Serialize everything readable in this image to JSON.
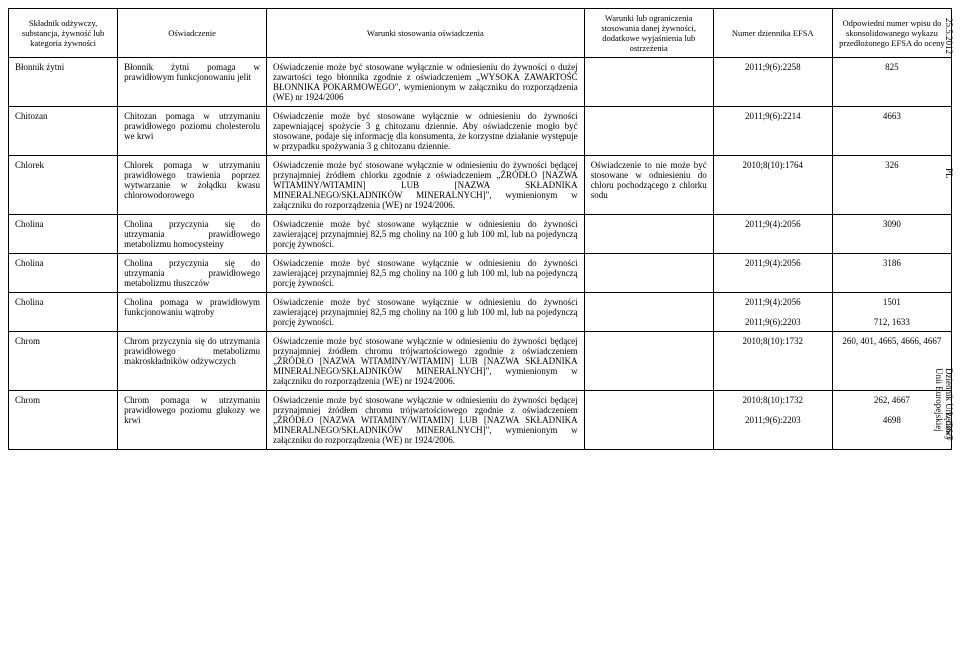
{
  "margins": {
    "top_date": "25.5.2012",
    "pl": "PL",
    "journal": "Dziennik Urzędowy Unii Europejskiej",
    "page": "L 136/7"
  },
  "headers": {
    "c1": "Składnik odżywczy, substancja, żywność lub kategoria żywności",
    "c2": "Oświadczenie",
    "c3": "Warunki stosowania oświadczenia",
    "c4": "Warunki lub ograniczenia stosowania danej żywności, dodatkowe wyjaśnienia lub ostrzeżenia",
    "c5": "Numer dziennika EFSA",
    "c6": "Odpowiedni numer wpisu do skonsolidowanego wykazu przedłożonego EFSA do oceny"
  },
  "rows": [
    {
      "c1": "Błonnik żytni",
      "c2": "Błonnik żytni pomaga w prawidłowym funkcjonowaniu jelit",
      "c3": "Oświadczenie może być stosowane wyłącznie w odniesieniu do żywności o dużej zawartości tego błonnika zgodnie z oświadczeniem „WYSOKA ZAWARTOŚĆ BŁONNIKA POKARMOWEGO\", wymienionym w załączniku do rozporządzenia (WE) nr 1924/2006",
      "c4": "",
      "c5": "2011;9(6):2258",
      "c6": "825"
    },
    {
      "c1": "Chitozan",
      "c2": "Chitozan pomaga w utrzymaniu prawidłowego poziomu cholesterolu we krwi",
      "c3": "Oświadczenie może być stosowane wyłącznie w odniesieniu do żywności zapewniającej spożycie 3 g chitozanu dziennie. Aby oświadczenie mogło być stosowane, podaje się informację dla konsumenta, że korzystne działanie występuje w przypadku spożywania 3 g chitozanu dziennie.",
      "c4": "",
      "c5": "2011;9(6):2214",
      "c6": "4663"
    },
    {
      "c1": "Chlorek",
      "c2": "Chlorek pomaga w utrzymaniu prawidłowego trawienia poprzez wytwarzanie w żołądku kwasu chlorowodorowego",
      "c3": "Oświadczenie może być stosowane wyłącznie w odniesieniu do żywności będącej przynajmniej źródłem chlorku zgodnie z oświadczeniem „ŹRÓDŁO [NAZWA WITAMINY/WITAMIN] LUB [NAZWA SKŁADNIKA MINERALNEGO/SKŁADNIKÓW MINERALNYCH]\", wymienionym w załączniku do rozporządzenia (WE) nr 1924/2006.",
      "c4": "Oświadczenie to nie może być stosowane w odniesieniu do chloru pochodzącego z chlorku sodu",
      "c5": "2010;8(10):1764",
      "c6": "326"
    },
    {
      "c1": "Cholina",
      "c2": "Cholina przyczynia się do utrzymania prawidłowego metabolizmu homocysteiny",
      "c3": "Oświadczenie może być stosowane wyłącznie w odniesieniu do żywności zawierającej przynajmniej 82,5 mg choliny na 100 g lub 100 ml, lub na pojedynczą porcję żywności.",
      "c4": "",
      "c5": "2011;9(4):2056",
      "c6": "3090"
    },
    {
      "c1": "Cholina",
      "c2": "Cholina przyczynia się do utrzymania prawidłowego metabolizmu tłuszczów",
      "c3": "Oświadczenie może być stosowane wyłącznie w odniesieniu do żywności zawierającej przynajmniej 82,5 mg choliny na 100 g lub 100 ml, lub na pojedynczą porcję żywności.",
      "c4": "",
      "c5": "2011;9(4):2056",
      "c6": "3186"
    },
    {
      "c1": "Cholina",
      "c2": "Cholina pomaga w prawidłowym funkcjonowaniu wątroby",
      "c3": "Oświadczenie może być stosowane wyłącznie w odniesieniu do żywności zawierającej przynajmniej 82,5 mg choliny na 100 g lub 100 ml, lub na pojedynczą porcję żywności.",
      "c4": "",
      "c5": "2011;9(4):2056\n2011;9(6):2203",
      "c6": "1501\n712, 1633"
    },
    {
      "c1": "Chrom",
      "c2": "Chrom przyczynia się do utrzymania prawidłowego metabolizmu makroskładników odżywczych",
      "c3": "Oświadczenie może być stosowane wyłącznie w odniesieniu do żywności będącej przynajmniej źródłem chromu trójwartościowego zgodnie z oświadczeniem „ŹRÓDŁO [NAZWA WITAMINY/WITAMIN] LUB [NAZWA SKŁADNIKA MINERALNEGO/SKŁADNIKÓW MINERALNYCH]\", wymienionym w załączniku do rozporządzenia (WE) nr 1924/2006.",
      "c4": "",
      "c5": "2010;8(10):1732",
      "c6": "260, 401, 4665, 4666, 4667"
    },
    {
      "c1": "Chrom",
      "c2": "Chrom pomaga w utrzymaniu prawidłowego poziomu glukozy we krwi",
      "c3": "Oświadczenie może być stosowane wyłącznie w odniesieniu do żywności będącej przynajmniej źródłem chromu trójwartościowego zgodnie z oświadczeniem „ŹRÓDŁO [NAZWA WITAMINY/WITAMIN] LUB [NAZWA SKŁADNIKA MINERALNEGO/SKŁADNIKÓW MINERALNYCH]\", wymienionym w załączniku do rozporządzenia (WE) nr 1924/2006.",
      "c4": "",
      "c5": "2010;8(10):1732\n2011;9(6):2203",
      "c6": "262, 4667\n4698"
    }
  ]
}
